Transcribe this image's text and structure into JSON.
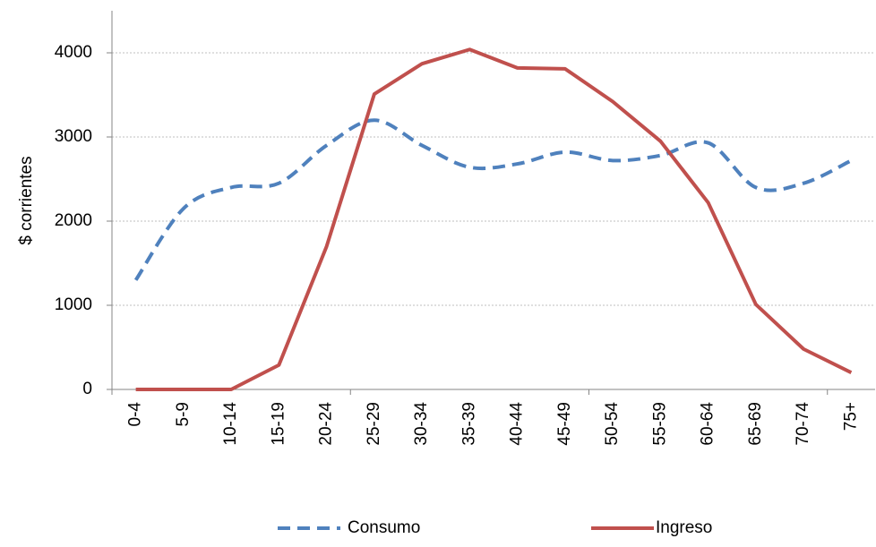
{
  "chart_data": {
    "type": "line",
    "y_label": "$ corrientes",
    "categories": [
      "0-4",
      "5-9",
      "10-14",
      "15-19",
      "20-24",
      "25-29",
      "30-34",
      "35-39",
      "40-44",
      "45-49",
      "50-54",
      "55-59",
      "60-64",
      "65-69",
      "70-74",
      "75+"
    ],
    "series": [
      {
        "name": "Consumo",
        "color": "#4f81bd",
        "dashed": true,
        "smooth": true,
        "values": [
          1300,
          2150,
          2400,
          2450,
          2900,
          3200,
          2900,
          2640,
          2680,
          2820,
          2720,
          2780,
          2930,
          2400,
          2450,
          2720
        ]
      },
      {
        "name": "Ingreso",
        "color": "#c0504d",
        "dashed": false,
        "smooth": false,
        "values": [
          0,
          0,
          0,
          290,
          1700,
          3510,
          3870,
          4040,
          3820,
          3810,
          3420,
          2950,
          2220,
          1010,
          480,
          200
        ]
      }
    ],
    "ylim": [
      0,
      4500
    ],
    "yticks": [
      0,
      1000,
      2000,
      3000,
      4000
    ],
    "grid": true,
    "legend": "bottom"
  }
}
